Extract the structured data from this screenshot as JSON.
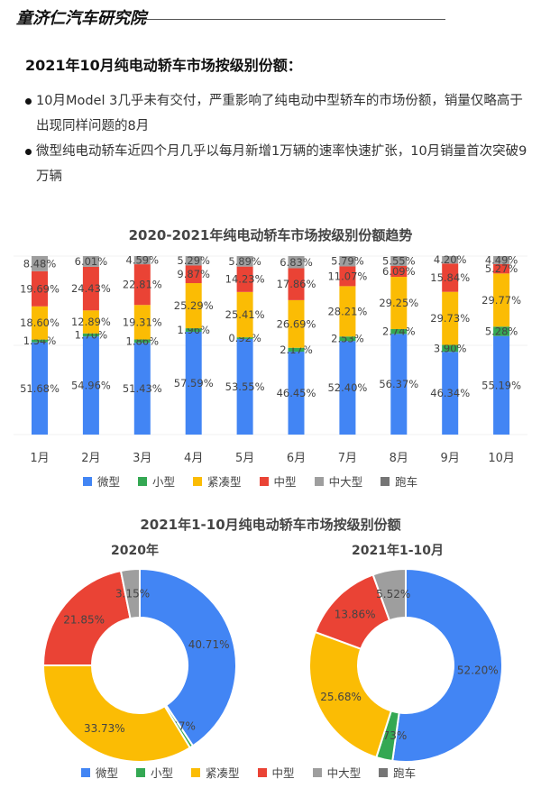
{
  "header": {
    "brand": "童济仁汽车研究院",
    "headline": "2021年10月纯电动轿车市场按级别份额：",
    "bullets": [
      {
        "text": "10月Model 3几乎未有交付，严重影响了纯电动中型轿车的市场份额，销量仅略高于出现同样问题的8月"
      },
      {
        "text": "微型纯电动轿车近四个月几乎以每月新增1万辆的速率快速扩张，10月销量首次突破9万辆"
      }
    ]
  },
  "colors": {
    "微型": "#4285f4",
    "小型": "#34a853",
    "紧凑型": "#fbbc04",
    "中型": "#ea4335",
    "中大型": "#9e9e9e",
    "跑车": "#757575"
  },
  "legend": [
    {
      "label": "微型",
      "color": "#4285f4"
    },
    {
      "label": "小型",
      "color": "#34a853"
    },
    {
      "label": "紧凑型",
      "color": "#fbbc04"
    },
    {
      "label": "中型",
      "color": "#ea4335"
    },
    {
      "label": "中大型",
      "color": "#9e9e9e"
    },
    {
      "label": "跑车",
      "color": "#757575"
    }
  ],
  "chart_data": [
    {
      "type": "bar",
      "stacked": true,
      "title": "2020-2021年纯电动轿车市场按级别份额趋势",
      "categories": [
        "1月",
        "2月",
        "3月",
        "4月",
        "5月",
        "6月",
        "7月",
        "8月",
        "9月",
        "10月"
      ],
      "series": [
        {
          "name": "微型",
          "values": [
            51.68,
            54.96,
            51.43,
            57.59,
            53.55,
            46.45,
            52.4,
            56.37,
            46.34,
            55.19
          ]
        },
        {
          "name": "小型",
          "values": [
            1.54,
            1.7,
            1.86,
            1.96,
            0.92,
            2.17,
            2.53,
            2.74,
            3.9,
            5.28
          ]
        },
        {
          "name": "紧凑型",
          "values": [
            18.6,
            12.89,
            19.31,
            25.29,
            25.41,
            26.69,
            28.21,
            29.25,
            29.73,
            29.77
          ]
        },
        {
          "name": "中型",
          "values": [
            19.69,
            24.43,
            22.81,
            9.87,
            14.23,
            17.86,
            11.07,
            6.09,
            15.84,
            5.27
          ]
        },
        {
          "name": "中大型",
          "values": [
            8.48,
            6.01,
            4.59,
            5.29,
            5.89,
            6.83,
            5.79,
            5.55,
            4.2,
            4.49
          ]
        },
        {
          "name": "跑车",
          "values": [
            0,
            0,
            0,
            0,
            0,
            0,
            0,
            0,
            0,
            0
          ]
        }
      ],
      "xlabel": "",
      "ylabel": "",
      "ylim": [
        0,
        100
      ],
      "grid": true,
      "legend_position": "bottom",
      "value_labels": true
    },
    {
      "type": "pie",
      "donut": true,
      "title": "2021年1-10月纯电动轿车市场按级别份额",
      "subtitle": "2020年",
      "categories": [
        "微型",
        "小型",
        "紧凑型",
        "中型",
        "中大型"
      ],
      "values": [
        40.71,
        0.57,
        33.73,
        21.85,
        3.15
      ],
      "legend_position": "bottom"
    },
    {
      "type": "pie",
      "donut": true,
      "title": "2021年1-10月纯电动轿车市场按级别份额",
      "subtitle": "2021年1-10月",
      "categories": [
        "微型",
        "小型",
        "紧凑型",
        "中型",
        "中大型"
      ],
      "values": [
        52.2,
        2.73,
        25.68,
        13.86,
        5.52
      ],
      "legend_position": "bottom"
    }
  ],
  "bar_chart": {
    "title": "2020-2021年纯电动轿车市场按级别份额趋势"
  },
  "donut_section": {
    "title": "2021年1-10月纯电动轿车市场按级别份额",
    "left_title": "2020年",
    "right_title": "2021年1-10月"
  }
}
